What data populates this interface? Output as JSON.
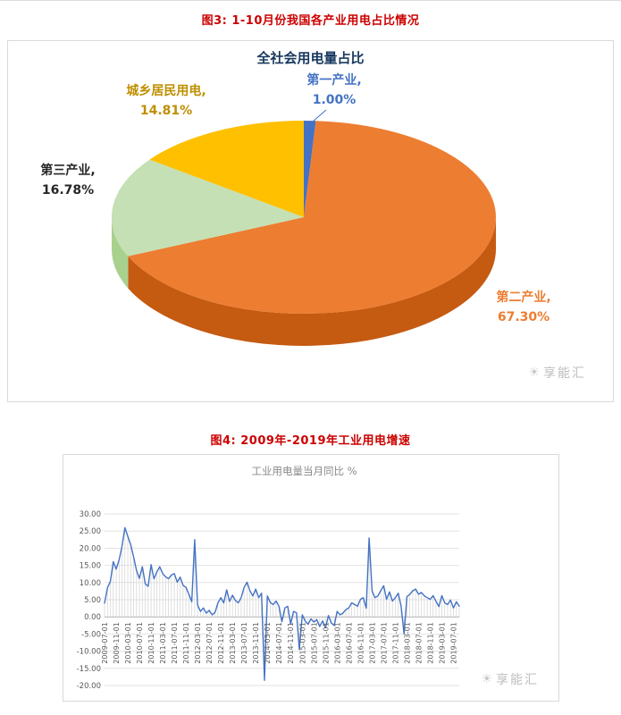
{
  "captions": {
    "figure3": "图3: 1-10月份我国各产业用电占比情况",
    "figure4": "图4: 2009年-2019年工业用电增速"
  },
  "watermark": {
    "text": "享能汇",
    "icon": "sun-icon"
  },
  "colors": {
    "caption_red": "#cc0000",
    "pie_title_navy": "#17375e",
    "line_blue": "#4472c4",
    "grid_gray": "#e2e2e2",
    "axis_gray": "#b0b0b0",
    "watermark_gray": "#bdbdbd"
  },
  "chart_data": [
    {
      "type": "pie",
      "title": "全社会用电量占比",
      "legend_position": "labels-around-pie",
      "slices": [
        {
          "label": "第一产业",
          "value": 1.0,
          "pct_label": "1.00%",
          "label_line1": "第一产业,",
          "color": "#4472c4",
          "side_color": "#2f5597",
          "text_color": "#4472c4"
        },
        {
          "label": "第二产业",
          "value": 67.3,
          "pct_label": "67.30%",
          "label_line1": "第二产业,",
          "color": "#ed7d31",
          "side_color": "#c55a11",
          "text_color": "#ed7d31"
        },
        {
          "label": "第三产业",
          "value": 16.78,
          "pct_label": "16.78%",
          "label_line1": "第三产业,",
          "color": "#c5e0b4",
          "side_color": "#a9d18e",
          "text_color": "#262626"
        },
        {
          "label": "城乡居民用电",
          "value": 14.81,
          "pct_label": "14.81%",
          "label_line1": "城乡居民用电,",
          "color": "#ffc000",
          "side_color": "#bf8f00",
          "text_color": "#bf8f00"
        }
      ]
    },
    {
      "type": "line",
      "title": "工业用电量当月同比 %",
      "series_name": "工业用电量当月同比",
      "x_start": "2009-07",
      "x_interval": "monthly",
      "ylim": [
        -20,
        30
      ],
      "grid": true,
      "y_tick_values": [
        30,
        25,
        20,
        15,
        10,
        5,
        0,
        -5,
        -10,
        -15,
        -20
      ],
      "y_tick_labels": [
        "30.00",
        "25.00",
        "20.00",
        "15.00",
        "10.00",
        "5.00",
        "0.00",
        "-5.00",
        "-10.00",
        "-15.00",
        "-20.00"
      ],
      "x_tick_labels": [
        "2009-07-01",
        "2009-11-01",
        "2010-03-01",
        "2010-07-01",
        "2010-11-01",
        "2011-03-01",
        "2011-07-01",
        "2011-11-01",
        "2012-03-01",
        "2012-07-01",
        "2012-11-01",
        "2013-03-01",
        "2013-07-01",
        "2013-11-01",
        "2014-03-01",
        "2014-07-01",
        "2014-11-01",
        "2015-03-01",
        "2015-07-01",
        "2015-11-01",
        "2016-03-01",
        "2016-07-01",
        "2016-11-01",
        "2017-03-01",
        "2017-07-01",
        "2017-11-01",
        "2018-03-01",
        "2018-07-01",
        "2018-11-01",
        "2019-03-01",
        "2019-07-01"
      ],
      "x_tick_every_n_months": 4,
      "values": [
        4.0,
        8.5,
        10.3,
        16.1,
        13.9,
        16.6,
        20.5,
        26.0,
        23.5,
        21.0,
        17.5,
        13.5,
        11.2,
        14.6,
        9.6,
        8.9,
        15.2,
        11.1,
        13.1,
        14.6,
        12.6,
        11.7,
        11.1,
        12.2,
        12.6,
        10.1,
        11.6,
        9.2,
        8.6,
        6.6,
        4.4,
        22.5,
        3.4,
        1.6,
        2.6,
        1.1,
        1.9,
        0.6,
        1.3,
        4.1,
        5.6,
        4.1,
        7.9,
        4.5,
        6.3,
        4.8,
        4.1,
        5.6,
        8.6,
        10.1,
        7.6,
        6.1,
        8.1,
        5.6,
        6.9,
        -18.5,
        6.1,
        4.2,
        3.6,
        4.6,
        3.1,
        -1.4,
        2.6,
        3.1,
        -2.1,
        1.6,
        1.2,
        -9.5,
        0.6,
        -1.2,
        -2.2,
        -0.6,
        -1.5,
        -0.8,
        -2.8,
        -1.2,
        -3.2,
        0.4,
        -1.8,
        -2.5,
        1.6,
        0.6,
        1.1,
        2.1,
        2.6,
        4.1,
        3.6,
        3.1,
        5.1,
        5.6,
        2.5,
        23.0,
        7.6,
        5.6,
        6.1,
        7.6,
        9.1,
        5.1,
        7.3,
        4.6,
        5.6,
        6.9,
        3.1,
        -5.0,
        5.9,
        6.6,
        7.6,
        8.1,
        6.6,
        7.1,
        6.1,
        5.6,
        5.1,
        6.2,
        4.5,
        3.0,
        6.2,
        4.1,
        3.6,
        4.9,
        2.6,
        4.4,
        3.1
      ],
      "line_color": "#4472c4",
      "title_color": "#8a8a8a"
    }
  ]
}
